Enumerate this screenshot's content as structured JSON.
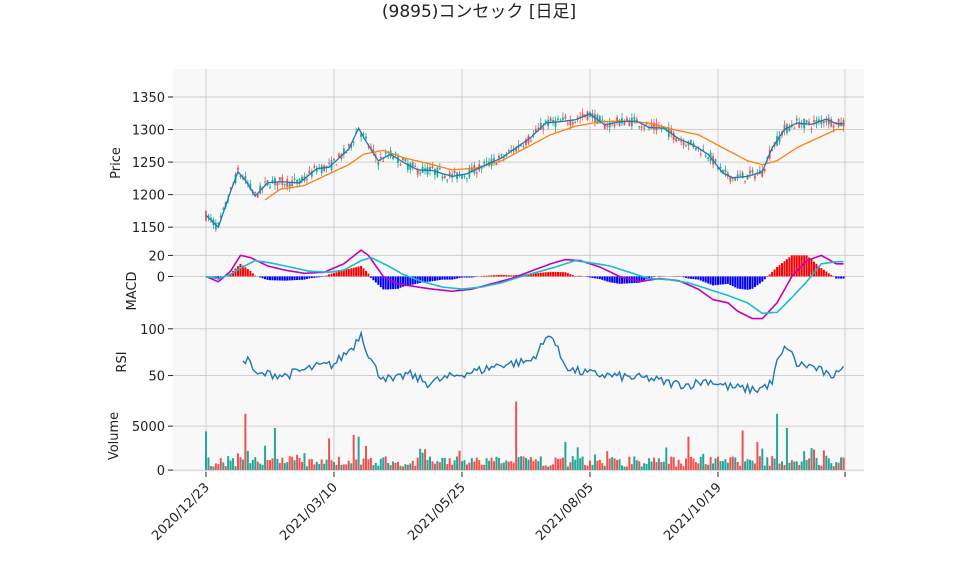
{
  "title": "(9895)コンセック [日足]",
  "colors": {
    "up": "#ef5350",
    "down": "#26a69a",
    "ma_short": "#1f77b4",
    "ma_long": "#ff7f0e",
    "macd": "#c000c0",
    "signal": "#17becf",
    "hist_pos": "#ff0000",
    "hist_neg": "#0000ff",
    "rsi": "#1f77b4",
    "vol_up": "#ef5350",
    "vol_down": "#26a69a",
    "panel_bg": "#f8f8f8",
    "grid": "#d0d0d0"
  },
  "chart_data": [
    {
      "type": "candlestick",
      "ylabel": "Price",
      "ylim": [
        1118,
        1393
      ],
      "yticks": [
        "1150",
        "1200",
        "1250",
        "1300",
        "1350"
      ],
      "x_tick_labels": [
        "2020/12/23",
        "2021/03/10",
        "2021/05/25",
        "2021/08/05",
        "2021/10/19"
      ],
      "x_tick_index": [
        0,
        52,
        104,
        156,
        208
      ],
      "n_days": 260,
      "ma_short_anchors": [
        [
          0,
          1168
        ],
        [
          5,
          1150
        ],
        [
          10,
          1205
        ],
        [
          13,
          1235
        ],
        [
          16,
          1222
        ],
        [
          20,
          1198
        ],
        [
          25,
          1218
        ],
        [
          30,
          1220
        ],
        [
          38,
          1218
        ],
        [
          45,
          1240
        ],
        [
          50,
          1242
        ],
        [
          58,
          1270
        ],
        [
          62,
          1302
        ],
        [
          65,
          1282
        ],
        [
          70,
          1252
        ],
        [
          75,
          1262
        ],
        [
          80,
          1250
        ],
        [
          86,
          1238
        ],
        [
          92,
          1237
        ],
        [
          100,
          1228
        ],
        [
          106,
          1232
        ],
        [
          112,
          1243
        ],
        [
          120,
          1256
        ],
        [
          126,
          1272
        ],
        [
          132,
          1288
        ],
        [
          138,
          1310
        ],
        [
          144,
          1312
        ],
        [
          150,
          1315
        ],
        [
          156,
          1324
        ],
        [
          162,
          1307
        ],
        [
          168,
          1312
        ],
        [
          175,
          1313
        ],
        [
          180,
          1303
        ],
        [
          186,
          1302
        ],
        [
          192,
          1286
        ],
        [
          198,
          1276
        ],
        [
          204,
          1262
        ],
        [
          210,
          1233
        ],
        [
          214,
          1226
        ],
        [
          220,
          1228
        ],
        [
          226,
          1235
        ],
        [
          230,
          1272
        ],
        [
          235,
          1300
        ],
        [
          240,
          1310
        ],
        [
          246,
          1308
        ],
        [
          252,
          1316
        ],
        [
          256,
          1309
        ]
      ],
      "ma_long_anchors": [
        [
          24,
          1192
        ],
        [
          30,
          1208
        ],
        [
          40,
          1214
        ],
        [
          50,
          1232
        ],
        [
          58,
          1246
        ],
        [
          64,
          1262
        ],
        [
          72,
          1268
        ],
        [
          80,
          1257
        ],
        [
          90,
          1248
        ],
        [
          100,
          1238
        ],
        [
          110,
          1241
        ],
        [
          120,
          1252
        ],
        [
          130,
          1272
        ],
        [
          140,
          1292
        ],
        [
          150,
          1305
        ],
        [
          160,
          1312
        ],
        [
          170,
          1313
        ],
        [
          180,
          1310
        ],
        [
          190,
          1300
        ],
        [
          200,
          1292
        ],
        [
          206,
          1280
        ],
        [
          212,
          1268
        ],
        [
          220,
          1252
        ],
        [
          226,
          1246
        ],
        [
          232,
          1252
        ],
        [
          240,
          1272
        ],
        [
          248,
          1286
        ],
        [
          256,
          1300
        ]
      ]
    },
    {
      "type": "line",
      "ylabel": "MACD",
      "ylim": [
        -47,
        27
      ],
      "yticks": [
        "20",
        "0"
      ],
      "series": [
        {
          "anchors": [
            [
              0,
              0
            ],
            [
              5,
              -5
            ],
            [
              10,
              5
            ],
            [
              14,
              20
            ],
            [
              18,
              18
            ],
            [
              25,
              10
            ],
            [
              32,
              6
            ],
            [
              40,
              3
            ],
            [
              48,
              4
            ],
            [
              56,
              12
            ],
            [
              63,
              25
            ],
            [
              66,
              20
            ],
            [
              72,
              0
            ],
            [
              78,
              -7
            ],
            [
              86,
              -10
            ],
            [
              92,
              -12
            ],
            [
              100,
              -14
            ],
            [
              108,
              -12
            ],
            [
              116,
              -7
            ],
            [
              124,
              -2
            ],
            [
              132,
              5
            ],
            [
              140,
              12
            ],
            [
              146,
              16
            ],
            [
              152,
              15
            ],
            [
              160,
              9
            ],
            [
              168,
              0
            ],
            [
              176,
              -5
            ],
            [
              184,
              -2
            ],
            [
              192,
              -4
            ],
            [
              200,
              -12
            ],
            [
              206,
              -22
            ],
            [
              212,
              -25
            ],
            [
              216,
              -33
            ],
            [
              222,
              -40
            ],
            [
              226,
              -40
            ],
            [
              232,
              -25
            ],
            [
              238,
              0
            ],
            [
              244,
              15
            ],
            [
              250,
              20
            ],
            [
              256,
              12
            ]
          ]
        },
        {
          "anchors": [
            [
              0,
              0
            ],
            [
              5,
              -2
            ],
            [
              10,
              2
            ],
            [
              14,
              8
            ],
            [
              20,
              15
            ],
            [
              26,
              13
            ],
            [
              34,
              9
            ],
            [
              42,
              5
            ],
            [
              50,
              4
            ],
            [
              56,
              6
            ],
            [
              63,
              15
            ],
            [
              67,
              18
            ],
            [
              74,
              10
            ],
            [
              80,
              2
            ],
            [
              88,
              -5
            ],
            [
              96,
              -10
            ],
            [
              104,
              -12
            ],
            [
              112,
              -10
            ],
            [
              120,
              -6
            ],
            [
              128,
              0
            ],
            [
              136,
              5
            ],
            [
              142,
              9
            ],
            [
              150,
              15
            ],
            [
              156,
              13
            ],
            [
              164,
              10
            ],
            [
              172,
              4
            ],
            [
              180,
              -2
            ],
            [
              188,
              -3
            ],
            [
              196,
              -6
            ],
            [
              204,
              -12
            ],
            [
              212,
              -18
            ],
            [
              220,
              -25
            ],
            [
              226,
              -35
            ],
            [
              232,
              -34
            ],
            [
              238,
              -20
            ],
            [
              244,
              -5
            ],
            [
              250,
              12
            ],
            [
              256,
              14
            ]
          ]
        }
      ]
    },
    {
      "type": "line",
      "ylabel": "RSI",
      "ylim": [
        26,
        103
      ],
      "yticks": [
        "100",
        "50"
      ],
      "series": [
        {
          "anchors": [
            [
              15,
              68
            ],
            [
              18,
              66
            ],
            [
              20,
              50
            ],
            [
              26,
              52
            ],
            [
              32,
              50
            ],
            [
              40,
              56
            ],
            [
              46,
              60
            ],
            [
              52,
              62
            ],
            [
              56,
              72
            ],
            [
              60,
              82
            ],
            [
              63,
              96
            ],
            [
              66,
              72
            ],
            [
              70,
              52
            ],
            [
              76,
              44
            ],
            [
              82,
              52
            ],
            [
              90,
              42
            ],
            [
              96,
              46
            ],
            [
              104,
              52
            ],
            [
              112,
              56
            ],
            [
              120,
              62
            ],
            [
              128,
              64
            ],
            [
              132,
              66
            ],
            [
              136,
              80
            ],
            [
              140,
              96
            ],
            [
              144,
              70
            ],
            [
              148,
              56
            ],
            [
              156,
              52
            ],
            [
              164,
              50
            ],
            [
              172,
              48
            ],
            [
              180,
              47
            ],
            [
              188,
              42
            ],
            [
              196,
              40
            ],
            [
              204,
              45
            ],
            [
              212,
              38
            ],
            [
              218,
              36
            ],
            [
              224,
              35
            ],
            [
              230,
              42
            ],
            [
              232,
              64
            ],
            [
              236,
              82
            ],
            [
              240,
              62
            ],
            [
              246,
              60
            ],
            [
              252,
              52
            ],
            [
              254,
              44
            ],
            [
              256,
              58
            ]
          ]
        }
      ]
    },
    {
      "type": "bar",
      "ylabel": "Volume",
      "ylim": [
        -220,
        8200
      ],
      "yticks": [
        "5000",
        "0"
      ]
    }
  ]
}
